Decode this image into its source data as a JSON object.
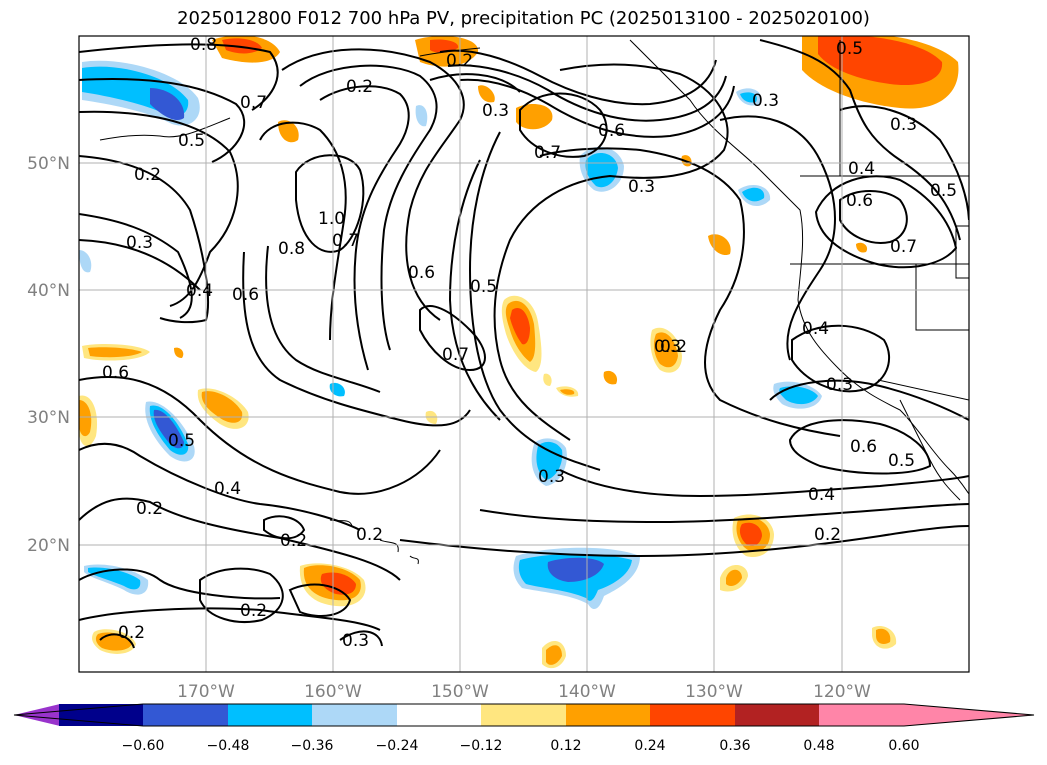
{
  "title": "2025012800 F012 700 hPa PV, precipitation PC (2025013100 - 2025020100)",
  "lat_labels": [
    "50°N",
    "40°N",
    "30°N",
    "20°N"
  ],
  "lon_labels": [
    "170°W",
    "160°W",
    "150°W",
    "140°W",
    "130°W",
    "120°W"
  ],
  "colorbar": {
    "colors": [
      "#9933cc",
      "#00008b",
      "#3358d4",
      "#00bfff",
      "#add8f7",
      "#ffffff",
      "#ffe680",
      "#ffa000",
      "#ff4500",
      "#b22222",
      "#ff85a8"
    ],
    "ticks": [
      "−0.60",
      "−0.48",
      "−0.36",
      "−0.24",
      "−0.12",
      "0.12",
      "0.24",
      "0.36",
      "0.48",
      "0.60"
    ]
  },
  "contour_labels": [
    "0.8",
    "0.5",
    "0.2",
    "0.3",
    "0.2",
    "0.7",
    "0.5",
    "0.2",
    "0.3",
    "0.4",
    "0.6",
    "0.8",
    "1.0",
    "0.7",
    "0.6",
    "0.5",
    "0.7",
    "0.6",
    "0.7",
    "0.3",
    "0.3",
    "0.5",
    "0.4",
    "0.3",
    "0.6",
    "0.7",
    "0.5",
    "0.4",
    "0.3",
    "0.6",
    "0.5",
    "0.2",
    "0.4",
    "0.2",
    "0.2",
    "0.2",
    "0.2",
    "0.3",
    "0.3",
    "0.2",
    "0.4",
    "0.2",
    "0.6",
    "0.3"
  ]
}
